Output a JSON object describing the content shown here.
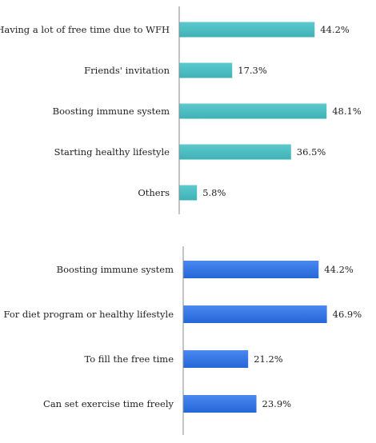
{
  "chart_data": [
    {
      "type": "bar",
      "orientation": "horizontal",
      "categories": [
        "Having a lot of free time due to WFH",
        "Friends' invitation",
        "Boosting immune system",
        "Starting healthy lifestyle",
        "Others"
      ],
      "values": [
        44.2,
        17.3,
        48.1,
        36.5,
        5.8
      ],
      "value_labels": [
        "44.2%",
        "17.3%",
        "48.1%",
        "36.5%",
        "5.8%"
      ],
      "unit": "%",
      "xlim": [
        0,
        55
      ],
      "grid": false,
      "bar_color": "#4BBFC4",
      "title": "",
      "xlabel": "",
      "ylabel": ""
    },
    {
      "type": "bar",
      "orientation": "horizontal",
      "categories": [
        "Boosting immune system",
        "For diet program or healthy lifestyle",
        "To fill the free time",
        "Can set exercise time freely"
      ],
      "values": [
        44.2,
        46.9,
        21.2,
        23.9
      ],
      "value_labels": [
        "44.2%",
        "46.9%",
        "21.2%",
        "23.9%"
      ],
      "unit": "%",
      "xlim": [
        0,
        55
      ],
      "grid": false,
      "bar_color": "#3478E8",
      "title": "",
      "xlabel": "",
      "ylabel": ""
    }
  ]
}
